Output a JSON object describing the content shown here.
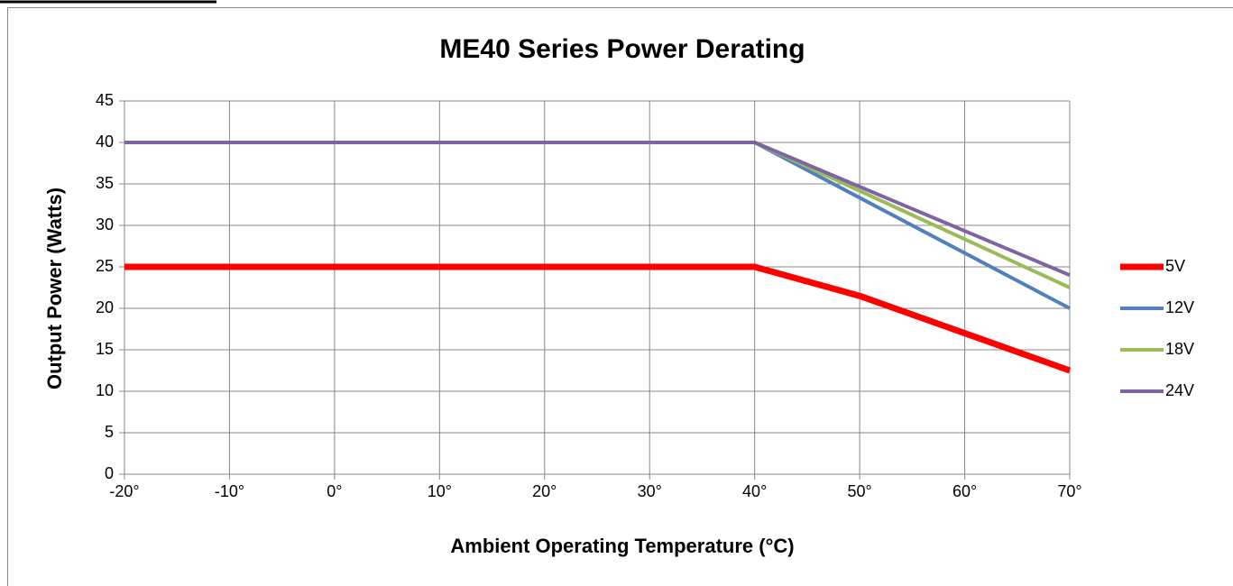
{
  "chart_data": {
    "type": "line",
    "title": "ME40 Series Power Derating",
    "x_label": "Ambient Operating Temperature (°C)",
    "y_label": "Output Power (Watts)",
    "series": [
      {
        "name": "5V",
        "color": "#ff0000",
        "x": [
          -20,
          40,
          50,
          70
        ],
        "values": [
          25,
          25,
          21.5,
          12.5
        ]
      },
      {
        "name": "12V",
        "color": "#4f81bd",
        "x": [
          -20,
          40,
          70
        ],
        "values": [
          40,
          40,
          20
        ]
      },
      {
        "name": "18V",
        "color": "#9bbb59",
        "x": [
          -20,
          40,
          70
        ],
        "values": [
          40,
          40,
          22.5
        ]
      },
      {
        "name": "24V",
        "color": "#8064a2",
        "x": [
          -20,
          40,
          70
        ],
        "values": [
          40,
          40,
          24
        ]
      }
    ],
    "xlim": [
      -20,
      70
    ],
    "xticks": [
      {
        "value": -20,
        "label": "-20°"
      },
      {
        "value": -10,
        "label": "-10°"
      },
      {
        "value": 0,
        "label": "0°"
      },
      {
        "value": 10,
        "label": "10°"
      },
      {
        "value": 20,
        "label": "20°"
      },
      {
        "value": 30,
        "label": "30°"
      },
      {
        "value": 40,
        "label": "40°"
      },
      {
        "value": 50,
        "label": "50°"
      },
      {
        "value": 60,
        "label": "60°"
      },
      {
        "value": 70,
        "label": "70°"
      }
    ],
    "ylim": [
      0,
      45
    ],
    "yticks": [
      0,
      5,
      10,
      15,
      20,
      25,
      30,
      35,
      40,
      45
    ],
    "grid": true,
    "legend": "right"
  }
}
